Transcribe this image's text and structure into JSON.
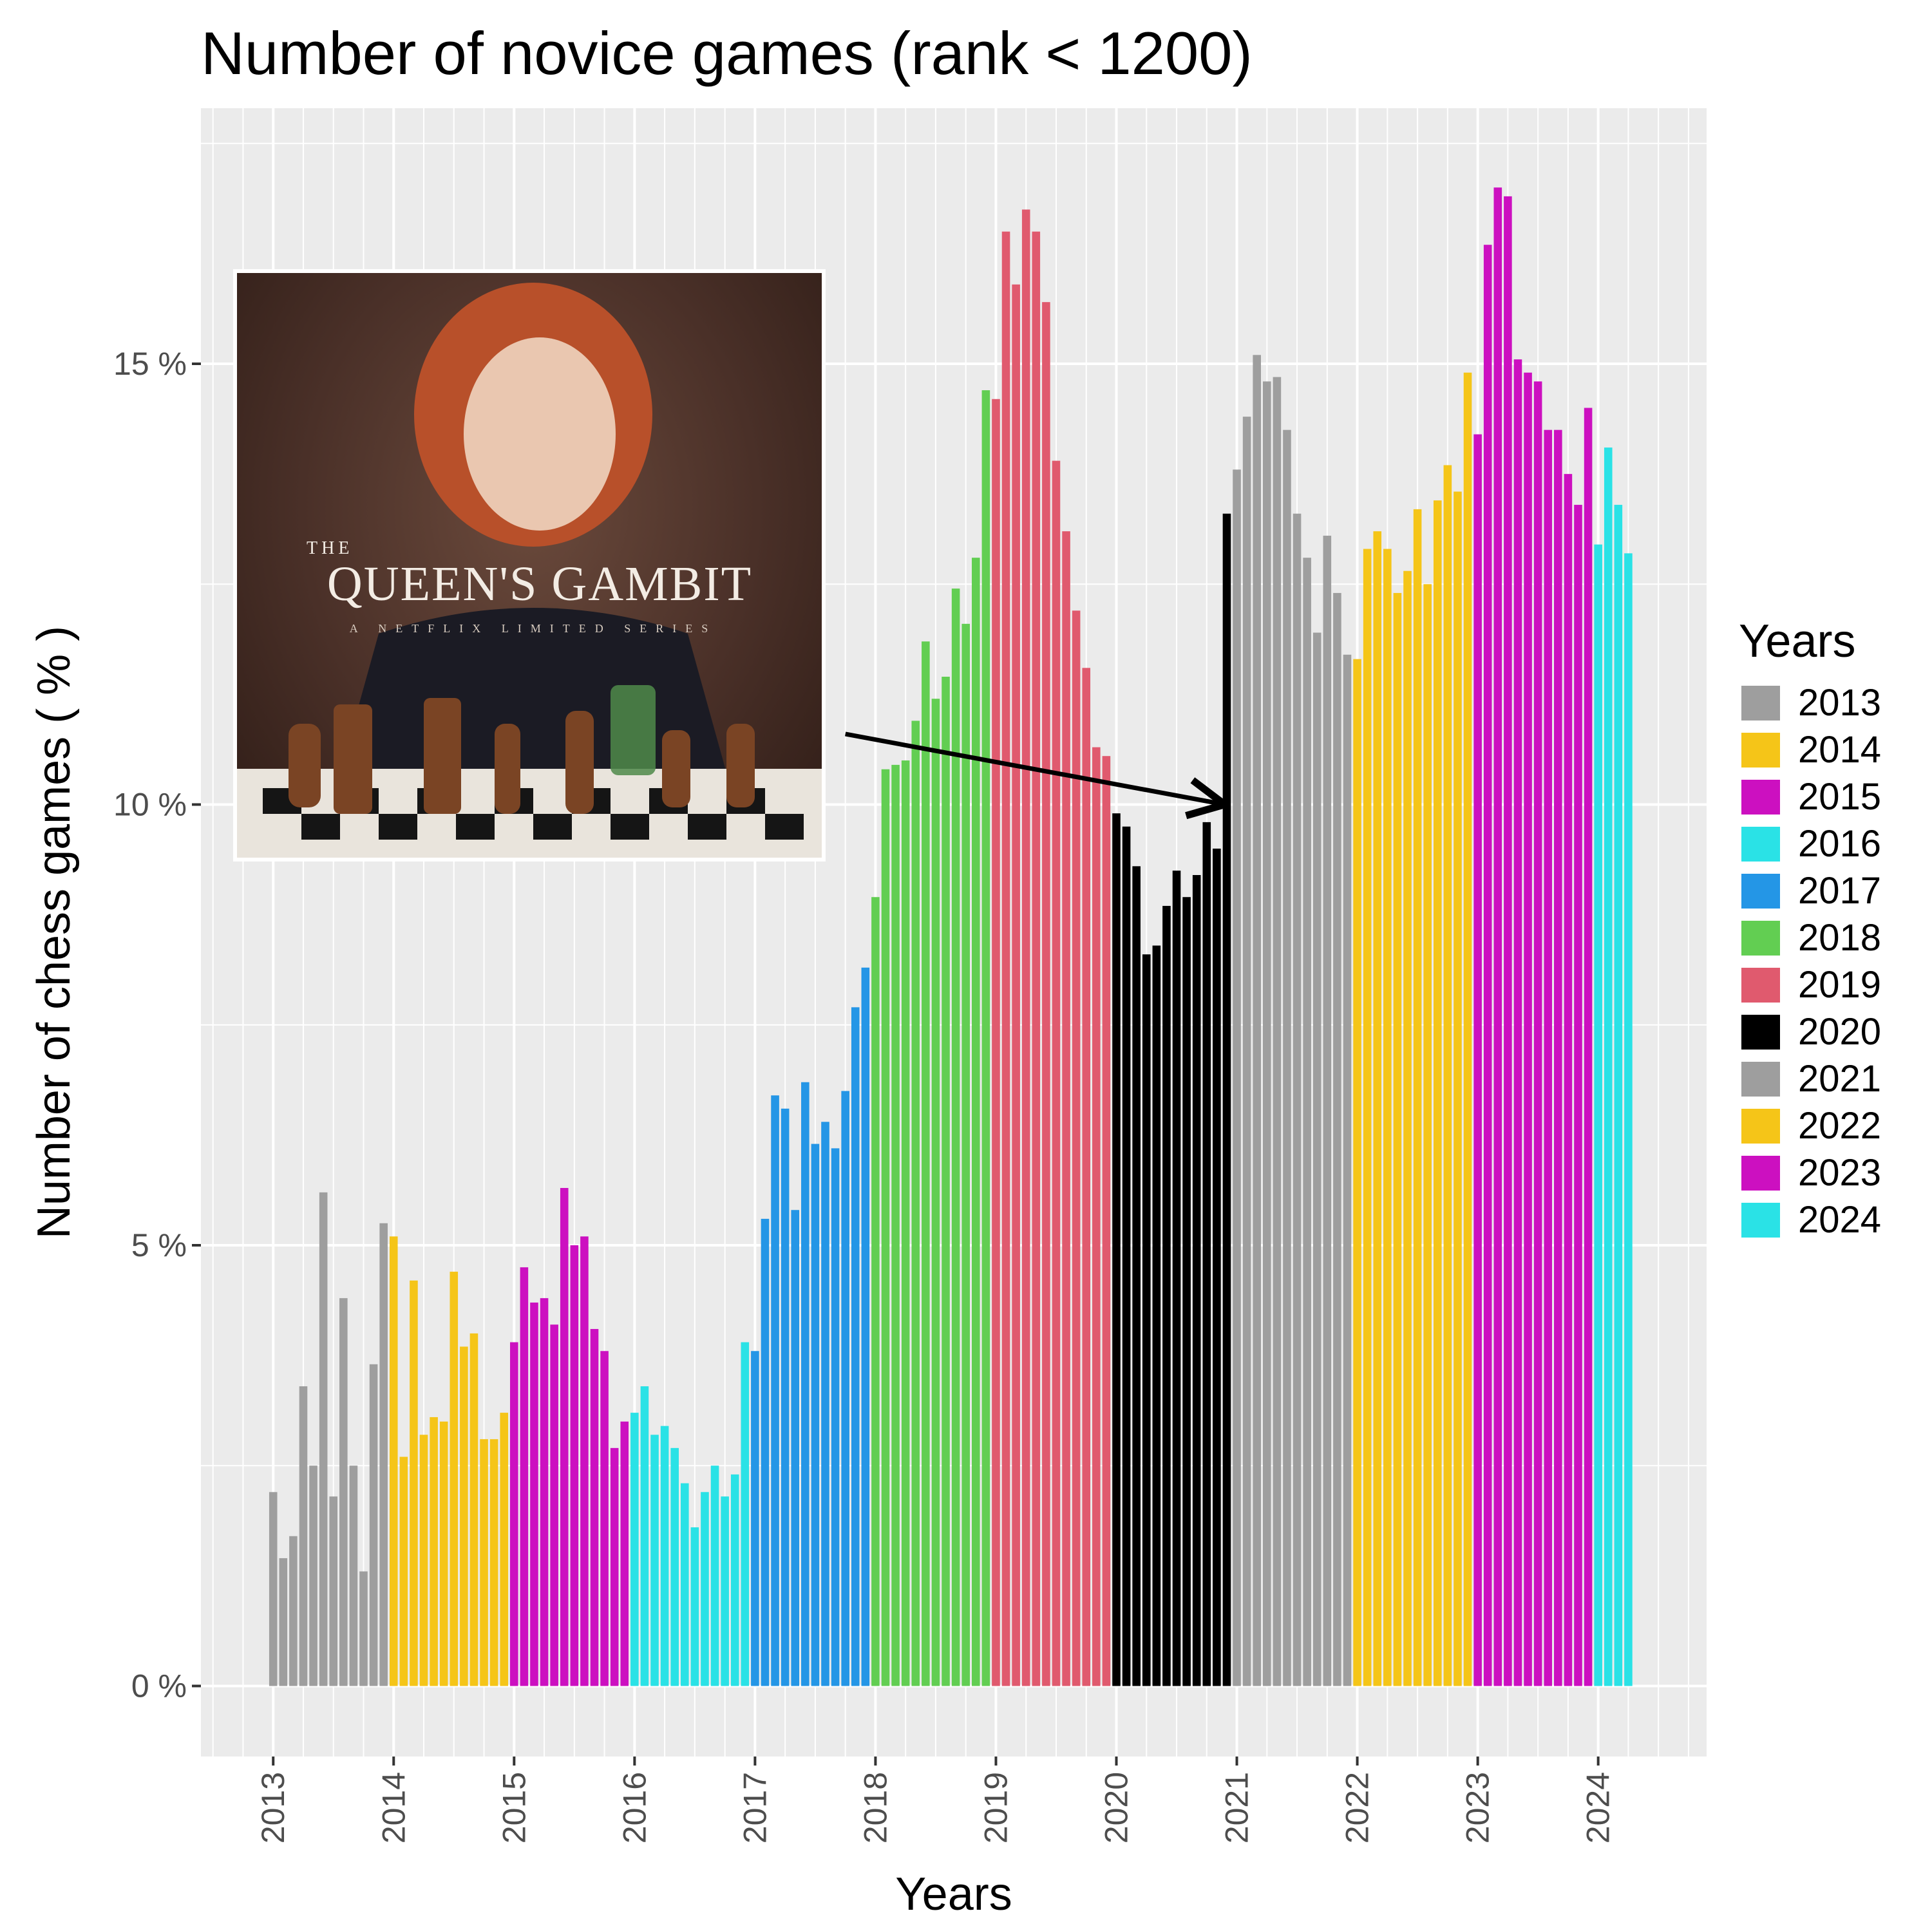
{
  "chart_data": {
    "type": "bar",
    "title": "Number of novice games (rank < 1200)",
    "xlabel": "Years",
    "ylabel": "Number of chess games ( % )",
    "ylim": [
      -0.8,
      17.9
    ],
    "xlim": [
      2012.4,
      2024.9
    ],
    "y_ticks": [
      0,
      5,
      10,
      15
    ],
    "y_tick_labels": [
      "0 %",
      "5 %",
      "10 %",
      "15 %"
    ],
    "x_ticks": [
      "2013",
      "2014",
      "2015",
      "2016",
      "2017",
      "2018",
      "2019",
      "2020",
      "2021",
      "2022",
      "2023",
      "2024"
    ],
    "grid": true,
    "legend_title": "Years",
    "legend_position": "right",
    "series": [
      {
        "name": "2013",
        "color": "#9e9e9e",
        "values": [
          2.2,
          1.45,
          1.7,
          3.4,
          2.5,
          5.6,
          2.15,
          4.4,
          2.5,
          1.3,
          3.65,
          5.25
        ]
      },
      {
        "name": "2014",
        "color": "#f5c518",
        "values": [
          5.1,
          2.6,
          4.6,
          2.85,
          3.05,
          3.0,
          4.7,
          3.85,
          4.0,
          2.8,
          2.8,
          3.1
        ]
      },
      {
        "name": "2015",
        "color": "#cc10c0",
        "values": [
          3.9,
          4.75,
          4.35,
          4.4,
          4.1,
          5.65,
          5.0,
          5.1,
          4.05,
          3.8,
          2.7,
          3.0
        ]
      },
      {
        "name": "2016",
        "color": "#2ae2e6",
        "values": [
          3.1,
          3.4,
          2.85,
          2.95,
          2.7,
          2.3,
          1.8,
          2.2,
          2.5,
          2.15,
          2.4,
          3.9
        ]
      },
      {
        "name": "2017",
        "color": "#2496e6",
        "values": [
          3.8,
          5.3,
          6.7,
          6.55,
          5.4,
          6.85,
          6.15,
          6.4,
          6.1,
          6.75,
          7.7,
          8.15
        ]
      },
      {
        "name": "2018",
        "color": "#62ce52",
        "values": [
          8.95,
          10.4,
          10.45,
          10.5,
          10.95,
          11.85,
          11.2,
          11.45,
          12.45,
          12.05,
          12.8,
          14.7
        ]
      },
      {
        "name": "2019",
        "color": "#e05a6e",
        "values": [
          14.6,
          16.5,
          15.9,
          16.75,
          16.5,
          15.7,
          13.9,
          13.1,
          12.2,
          11.55,
          10.65,
          10.55
        ]
      },
      {
        "name": "2020",
        "color": "#000000",
        "values": [
          9.9,
          9.75,
          9.3,
          8.3,
          8.4,
          8.85,
          9.25,
          8.95,
          9.2,
          9.8,
          9.5,
          13.3
        ]
      },
      {
        "name": "2021",
        "color": "#9e9e9e",
        "values": [
          13.8,
          14.4,
          15.1,
          14.8,
          14.85,
          14.25,
          13.3,
          12.8,
          11.95,
          13.05,
          12.4,
          11.7
        ]
      },
      {
        "name": "2022",
        "color": "#f5c518",
        "values": [
          11.65,
          12.9,
          13.1,
          12.9,
          12.4,
          12.65,
          13.35,
          12.5,
          13.45,
          13.85,
          13.55,
          14.9
        ]
      },
      {
        "name": "2023",
        "color": "#cc10c0",
        "values": [
          14.2,
          16.35,
          17.0,
          16.9,
          15.05,
          14.9,
          14.8,
          14.25,
          14.25,
          13.75,
          13.4,
          14.5
        ]
      },
      {
        "name": "2024",
        "color": "#2ae2e6",
        "values": [
          12.95,
          14.05,
          13.4,
          12.85
        ]
      }
    ],
    "annotation": {
      "type": "arrow",
      "from": [
        2017.75,
        10.8
      ],
      "to": [
        2020.9,
        10.0
      ]
    },
    "inset_image": {
      "title_small": "THE",
      "title": "QUEEN'S GAMBIT",
      "subtitle": "A NETFLIX LIMITED SERIES"
    }
  }
}
